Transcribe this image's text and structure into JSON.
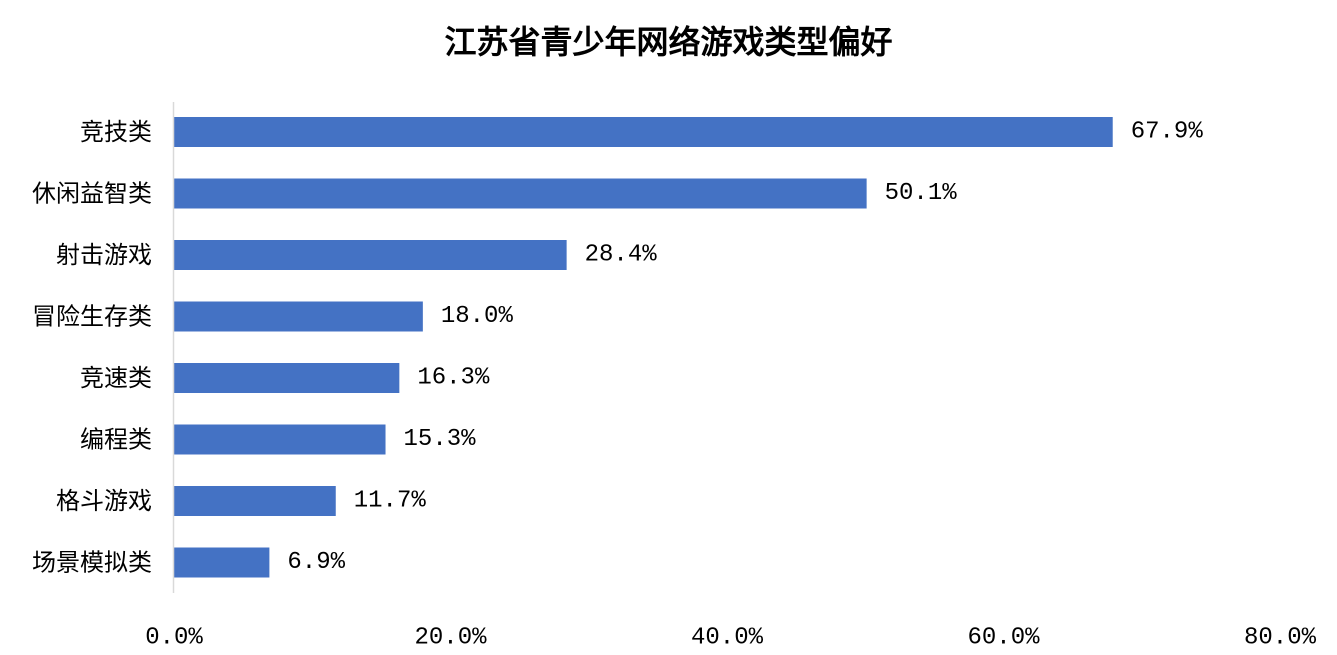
{
  "chart_data": {
    "type": "bar",
    "orientation": "horizontal",
    "title": "江苏省青少年网络游戏类型偏好",
    "categories": [
      "竞技类",
      "休闲益智类",
      "射击游戏",
      "冒险生存类",
      "竞速类",
      "编程类",
      "格斗游戏",
      "场景模拟类"
    ],
    "values": [
      67.9,
      50.1,
      28.4,
      18.0,
      16.3,
      15.3,
      11.7,
      6.9
    ],
    "value_labels": [
      "67.9%",
      "50.1%",
      "28.4%",
      "18.0%",
      "16.3%",
      "15.3%",
      "11.7%",
      "6.9%"
    ],
    "xlim": [
      0,
      80
    ],
    "x_ticks": [
      0,
      20,
      40,
      60,
      80
    ],
    "x_tick_labels": [
      "0.0%",
      "20.0%",
      "40.0%",
      "60.0%",
      "80.0%"
    ],
    "xlabel": "",
    "ylabel": "",
    "grid": false,
    "legend": "none",
    "bar_color": "#4472C4",
    "axis_color": "#D9D9D9"
  }
}
